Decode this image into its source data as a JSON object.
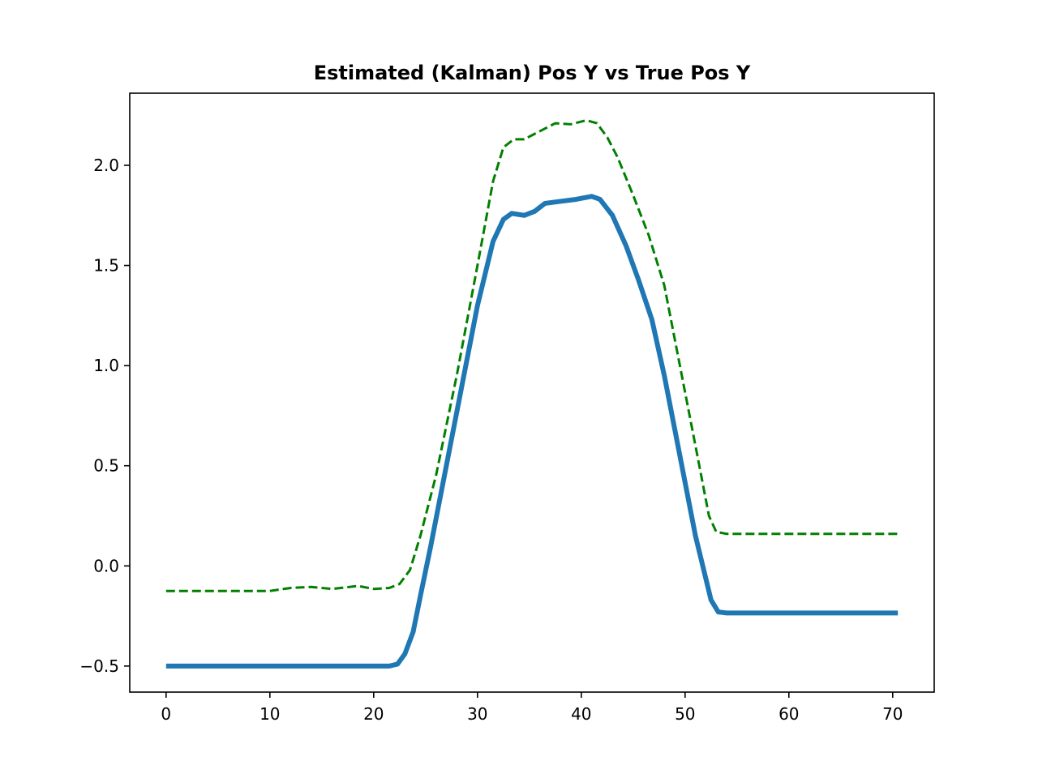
{
  "chart_data": {
    "type": "line",
    "title": "Estimated (Kalman) Pos Y vs True Pos Y",
    "xlabel": "",
    "ylabel": "",
    "xlim": [
      -3.5,
      74
    ],
    "ylim": [
      -0.63,
      2.36
    ],
    "x_ticks": [
      0,
      10,
      20,
      30,
      40,
      50,
      60,
      70
    ],
    "x_tick_labels": [
      "0",
      "10",
      "20",
      "30",
      "40",
      "50",
      "60",
      "70"
    ],
    "y_ticks": [
      -0.5,
      0.0,
      0.5,
      1.0,
      1.5,
      2.0
    ],
    "y_tick_labels": [
      "−0.5",
      "0.0",
      "0.5",
      "1.0",
      "1.5",
      "2.0"
    ],
    "grid": false,
    "legend": "none",
    "series": [
      {
        "style": "solid",
        "color": "#1f77b4",
        "points": [
          [
            0,
            -0.5
          ],
          [
            10,
            -0.5
          ],
          [
            20,
            -0.5
          ],
          [
            21.5,
            -0.5
          ],
          [
            22.3,
            -0.49
          ],
          [
            23.0,
            -0.44
          ],
          [
            23.8,
            -0.33
          ],
          [
            24.5,
            -0.15
          ],
          [
            25.5,
            0.1
          ],
          [
            27,
            0.5
          ],
          [
            28.5,
            0.9
          ],
          [
            30,
            1.3
          ],
          [
            31.5,
            1.62
          ],
          [
            32.5,
            1.73
          ],
          [
            33.3,
            1.76
          ],
          [
            34.5,
            1.75
          ],
          [
            35.5,
            1.77
          ],
          [
            36.5,
            1.81
          ],
          [
            38,
            1.82
          ],
          [
            39.5,
            1.83
          ],
          [
            41,
            1.845
          ],
          [
            41.8,
            1.83
          ],
          [
            43,
            1.75
          ],
          [
            44.3,
            1.6
          ],
          [
            45.5,
            1.43
          ],
          [
            46.8,
            1.23
          ],
          [
            48,
            0.95
          ],
          [
            49.5,
            0.55
          ],
          [
            51,
            0.15
          ],
          [
            52.5,
            -0.17
          ],
          [
            53.2,
            -0.23
          ],
          [
            54,
            -0.235
          ],
          [
            60,
            -0.235
          ],
          [
            70,
            -0.235
          ],
          [
            70.5,
            -0.235
          ]
        ]
      },
      {
        "style": "dashed",
        "color": "#008000",
        "points": [
          [
            0,
            -0.125
          ],
          [
            5,
            -0.125
          ],
          [
            10,
            -0.125
          ],
          [
            12,
            -0.11
          ],
          [
            14,
            -0.105
          ],
          [
            16,
            -0.115
          ],
          [
            18.5,
            -0.1
          ],
          [
            20,
            -0.115
          ],
          [
            21.5,
            -0.11
          ],
          [
            22.5,
            -0.09
          ],
          [
            23.5,
            -0.02
          ],
          [
            24.5,
            0.15
          ],
          [
            26,
            0.45
          ],
          [
            28,
            0.95
          ],
          [
            30,
            1.5
          ],
          [
            31.5,
            1.92
          ],
          [
            32.5,
            2.09
          ],
          [
            33.5,
            2.13
          ],
          [
            34.5,
            2.13
          ],
          [
            36,
            2.17
          ],
          [
            37.5,
            2.21
          ],
          [
            39,
            2.205
          ],
          [
            40.5,
            2.225
          ],
          [
            41.5,
            2.21
          ],
          [
            42.5,
            2.14
          ],
          [
            43.5,
            2.04
          ],
          [
            45,
            1.85
          ],
          [
            46.5,
            1.65
          ],
          [
            48,
            1.4
          ],
          [
            49.5,
            1.0
          ],
          [
            51,
            0.6
          ],
          [
            52.3,
            0.25
          ],
          [
            53,
            0.17
          ],
          [
            54,
            0.16
          ],
          [
            60,
            0.16
          ],
          [
            70,
            0.16
          ],
          [
            70.5,
            0.16
          ]
        ]
      }
    ]
  }
}
